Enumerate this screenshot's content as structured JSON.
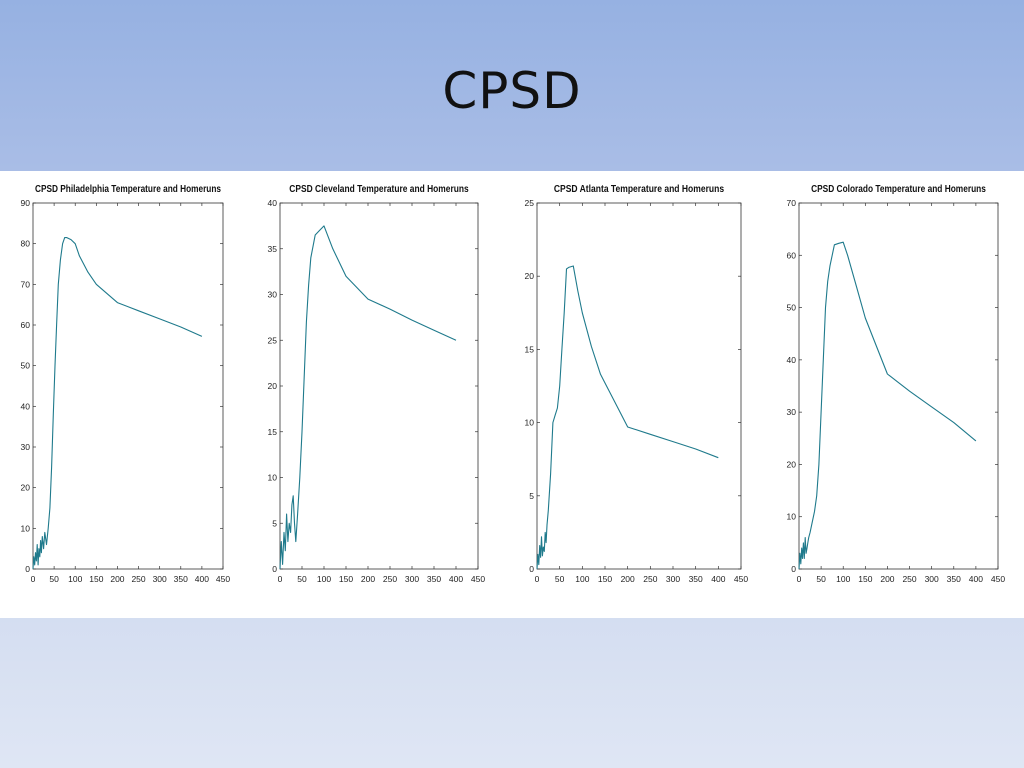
{
  "slide": {
    "title": "CPSD"
  },
  "colors": {
    "line": "#1f7a8c",
    "axis": "#333333"
  },
  "chart_data": [
    {
      "type": "line",
      "title": "CPSD Philadelphia Temperature and Homeruns",
      "xlabel": "",
      "ylabel": "",
      "xlim": [
        0,
        450
      ],
      "ylim": [
        0,
        90
      ],
      "xticks": [
        0,
        50,
        100,
        150,
        200,
        250,
        300,
        350,
        400,
        450
      ],
      "yticks": [
        0,
        10,
        20,
        30,
        40,
        50,
        60,
        70,
        80,
        90
      ],
      "series": [
        {
          "name": "CPSD",
          "x": [
            0,
            2,
            4,
            6,
            8,
            10,
            12,
            14,
            16,
            18,
            20,
            22,
            25,
            28,
            32,
            36,
            40,
            44,
            48,
            52,
            56,
            60,
            65,
            70,
            75,
            80,
            90,
            100,
            110,
            130,
            150,
            200,
            250,
            300,
            350,
            400
          ],
          "y": [
            0,
            3,
            1,
            4,
            2,
            6,
            1,
            5,
            3,
            7,
            4,
            8,
            5,
            9,
            6,
            10,
            15,
            25,
            38,
            50,
            60,
            70,
            76,
            80,
            81.5,
            81.5,
            81,
            80,
            77,
            73,
            70,
            65.5,
            63.5,
            61.5,
            59.5,
            57.2
          ]
        }
      ]
    },
    {
      "type": "line",
      "title": "CPSD Cleveland Temperature and Homeruns",
      "xlabel": "",
      "ylabel": "",
      "xlim": [
        0,
        450
      ],
      "ylim": [
        0,
        40
      ],
      "xticks": [
        0,
        50,
        100,
        150,
        200,
        250,
        300,
        350,
        400,
        450
      ],
      "yticks": [
        0,
        5,
        10,
        15,
        20,
        25,
        30,
        35,
        40
      ],
      "series": [
        {
          "name": "CPSD",
          "x": [
            0,
            3,
            6,
            9,
            12,
            15,
            18,
            21,
            24,
            27,
            30,
            33,
            36,
            40,
            45,
            50,
            55,
            60,
            65,
            70,
            80,
            90,
            100,
            120,
            150,
            200,
            250,
            300,
            350,
            400
          ],
          "y": [
            0,
            3,
            0.5,
            4,
            2,
            6,
            3,
            5,
            4,
            7,
            8,
            5,
            3,
            6,
            10,
            15,
            21,
            27,
            31,
            34,
            36.5,
            37,
            37.5,
            35,
            32,
            29.5,
            28.4,
            27.2,
            26.1,
            25
          ]
        }
      ]
    },
    {
      "type": "line",
      "title": "CPSD Atlanta Temperature and Homeruns",
      "xlabel": "",
      "ylabel": "",
      "xlim": [
        0,
        450
      ],
      "ylim": [
        0,
        25
      ],
      "xticks": [
        0,
        50,
        100,
        150,
        200,
        250,
        300,
        350,
        400,
        450
      ],
      "yticks": [
        0,
        5,
        10,
        15,
        20,
        25
      ],
      "series": [
        {
          "name": "CPSD",
          "x": [
            0,
            2,
            4,
            6,
            8,
            10,
            12,
            14,
            16,
            18,
            20,
            22,
            25,
            30,
            35,
            40,
            45,
            50,
            55,
            60,
            65,
            70,
            80,
            90,
            100,
            120,
            140,
            170,
            200,
            250,
            300,
            350,
            400
          ],
          "y": [
            0,
            1,
            0.3,
            1.6,
            0.8,
            2.2,
            0.9,
            1.5,
            1.2,
            2.5,
            1.8,
            3,
            4,
            6.5,
            10,
            10.5,
            11,
            12.5,
            15,
            17.5,
            20.5,
            20.6,
            20.7,
            19,
            17.5,
            15.2,
            13.3,
            11.5,
            9.7,
            9.2,
            8.7,
            8.2,
            7.6
          ]
        }
      ]
    },
    {
      "type": "line",
      "title": "CPSD Colorado Temperature and Homeruns",
      "xlabel": "",
      "ylabel": "",
      "xlim": [
        0,
        450
      ],
      "ylim": [
        0,
        70
      ],
      "xticks": [
        0,
        50,
        100,
        150,
        200,
        250,
        300,
        350,
        400,
        450
      ],
      "yticks": [
        0,
        10,
        20,
        30,
        40,
        50,
        60,
        70
      ],
      "series": [
        {
          "name": "CPSD",
          "x": [
            0,
            2,
            4,
            6,
            8,
            10,
            12,
            14,
            16,
            18,
            20,
            22,
            25,
            30,
            35,
            40,
            45,
            50,
            55,
            60,
            65,
            70,
            80,
            90,
            100,
            110,
            130,
            150,
            200,
            250,
            300,
            350,
            400
          ],
          "y": [
            0,
            3,
            1,
            4,
            2,
            5,
            2,
            6,
            3,
            4,
            5,
            6,
            7,
            9,
            11,
            14,
            20,
            30,
            40,
            50,
            55,
            58,
            62,
            62.3,
            62.5,
            60,
            54,
            48,
            37.3,
            34,
            31,
            28,
            24.5
          ]
        }
      ]
    }
  ]
}
